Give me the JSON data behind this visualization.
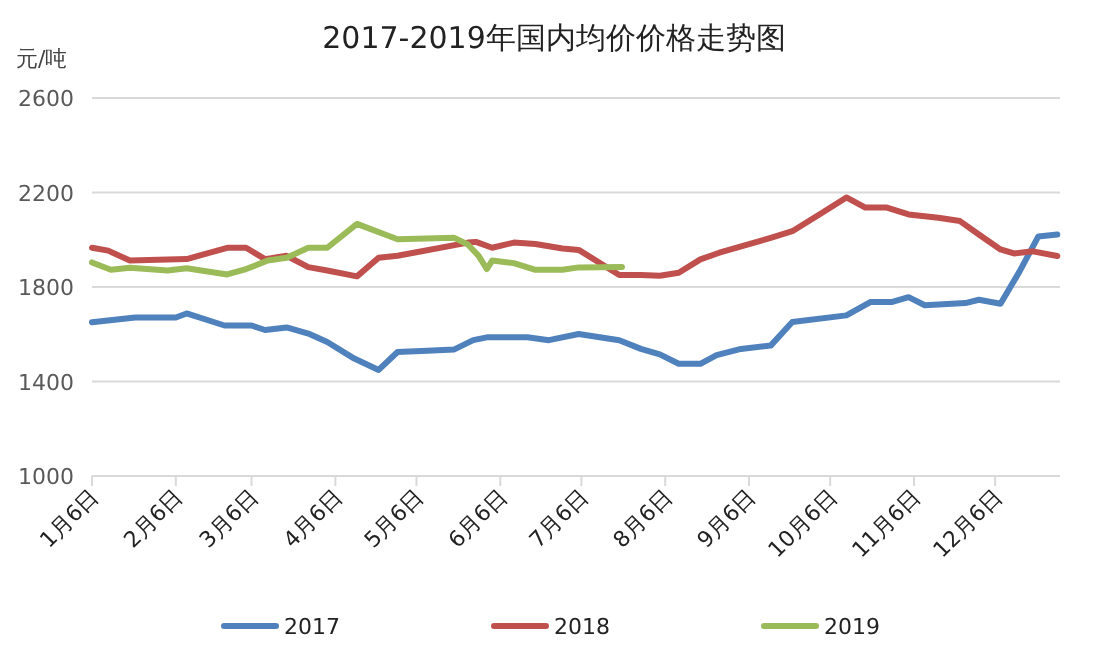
{
  "chart_data": {
    "type": "line",
    "title": "2017-2019年国内均价价格走势图",
    "ylabel": "元/吨",
    "xlim": [
      "--01-06",
      "--12-30"
    ],
    "ylim": [
      1000,
      2600
    ],
    "yticks": [
      1000,
      1400,
      1800,
      2200,
      2600
    ],
    "xticks": [
      {
        "value": "--01-06",
        "label": "1月6日"
      },
      {
        "value": "--02-06",
        "label": "2月6日"
      },
      {
        "value": "--03-06",
        "label": "3月6日"
      },
      {
        "value": "--04-06",
        "label": "4月6日"
      },
      {
        "value": "--05-06",
        "label": "5月6日"
      },
      {
        "value": "--06-06",
        "label": "6月6日"
      },
      {
        "value": "--07-06",
        "label": "7月6日"
      },
      {
        "value": "--08-06",
        "label": "8月6日"
      },
      {
        "value": "--09-06",
        "label": "9月6日"
      },
      {
        "value": "--10-06",
        "label": "10月6日"
      },
      {
        "value": "--11-06",
        "label": "11月6日"
      },
      {
        "value": "--12-06",
        "label": "12月6日"
      }
    ],
    "grid": "y",
    "legend": "bottom",
    "marker": "none",
    "line_style": "solid",
    "series": [
      {
        "name": "2017",
        "color": "#4f81bd",
        "x": [
          "--01-06",
          "--01-22",
          "--02-06",
          "--02-10",
          "--02-24",
          "--03-06",
          "--03-11",
          "--03-19",
          "--03-27",
          "--04-03",
          "--04-13",
          "--04-22",
          "--04-29",
          "--05-10",
          "--05-20",
          "--05-27",
          "--06-01",
          "--06-16",
          "--06-24",
          "--07-05",
          "--07-20",
          "--07-28",
          "--08-04",
          "--08-11",
          "--08-19",
          "--08-25",
          "--09-03",
          "--09-14",
          "--09-22",
          "--10-12",
          "--10-21",
          "--10-29",
          "--11-04",
          "--11-10",
          "--11-25",
          "--11-30",
          "--12-08",
          "--12-15",
          "--12-22",
          "--12-29"
        ],
        "values": [
          1651,
          1671,
          1671,
          1688,
          1637,
          1637,
          1618,
          1629,
          1603,
          1567,
          1497,
          1449,
          1525,
          1530,
          1536,
          1575,
          1587,
          1587,
          1575,
          1601,
          1575,
          1538,
          1515,
          1475,
          1475,
          1512,
          1538,
          1552,
          1652,
          1680,
          1737,
          1737,
          1757,
          1723,
          1732,
          1746,
          1729,
          1865,
          2014,
          2022
        ]
      },
      {
        "name": "2018",
        "color": "#c0504d",
        "x": [
          "--01-06",
          "--01-12",
          "--01-20",
          "--02-10",
          "--02-25",
          "--03-04",
          "--03-11",
          "--03-19",
          "--03-27",
          "--04-03",
          "--04-14",
          "--04-22",
          "--04-29",
          "--05-25",
          "--05-28",
          "--06-03",
          "--06-11",
          "--06-19",
          "--06-29",
          "--07-05",
          "--07-20",
          "--07-28",
          "--08-04",
          "--08-11",
          "--08-19",
          "--08-26",
          "--09-14",
          "--09-22",
          "--10-02",
          "--10-12",
          "--10-19",
          "--10-27",
          "--11-04",
          "--11-15",
          "--11-23",
          "--11-30",
          "--12-08",
          "--12-13",
          "--12-20",
          "--12-29"
        ],
        "values": [
          1966,
          1954,
          1912,
          1918,
          1966,
          1966,
          1918,
          1932,
          1884,
          1870,
          1845,
          1924,
          1932,
          1988,
          1991,
          1966,
          1988,
          1982,
          1963,
          1957,
          1851,
          1851,
          1848,
          1860,
          1917,
          1945,
          2008,
          2036,
          2107,
          2179,
          2136,
          2136,
          2107,
          2093,
          2079,
          2022,
          1959,
          1942,
          1951,
          1931
        ]
      },
      {
        "name": "2019",
        "color": "#9bbb59",
        "x": [
          "--01-06",
          "--01-13",
          "--01-20",
          "--02-03",
          "--02-10",
          "--02-25",
          "--03-04",
          "--03-12",
          "--03-19",
          "--03-27",
          "--04-03",
          "--04-14",
          "--04-29",
          "--05-20",
          "--05-25",
          "--05-29",
          "--06-01",
          "--06-03",
          "--06-11",
          "--06-19",
          "--06-29",
          "--07-05",
          "--07-21"
        ],
        "values": [
          1904,
          1873,
          1881,
          1870,
          1879,
          1853,
          1876,
          1912,
          1924,
          1966,
          1966,
          2067,
          2002,
          2008,
          1980,
          1932,
          1876,
          1912,
          1901,
          1873,
          1873,
          1883,
          1885
        ]
      }
    ]
  }
}
